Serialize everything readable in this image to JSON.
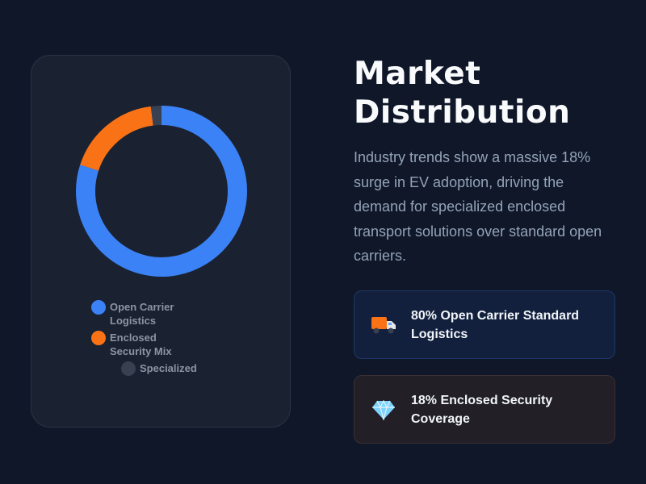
{
  "chart_data": {
    "type": "donut",
    "categories": [
      "Open Carrier Logistics",
      "Enclosed Security Mix",
      "Specialized"
    ],
    "values": [
      80,
      18,
      2
    ],
    "colors": [
      "#3b82f6",
      "#f97316",
      "#374151"
    ]
  },
  "heading": "Market Distribution",
  "description": "Industry trends show a massive 18% surge in EV adoption, driving the demand for specialized enclosed transport solutions over standard open carriers.",
  "cards": [
    {
      "text": "80% Open Carrier Standard Logistics"
    },
    {
      "text": "18% Enclosed Security Coverage"
    }
  ]
}
